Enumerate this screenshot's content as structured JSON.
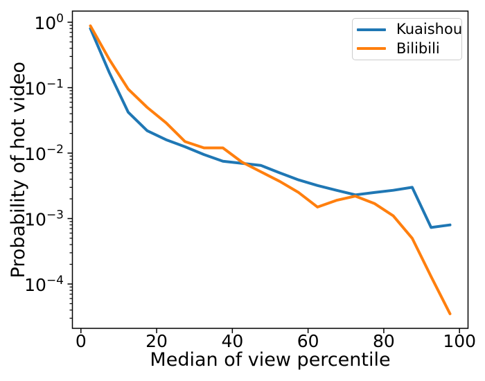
{
  "chart_data": {
    "type": "line",
    "title": "",
    "xlabel": "Median of view percentile",
    "ylabel": "Probability of hot video",
    "x": [
      2.5,
      7.5,
      12.5,
      17.5,
      22.5,
      27.5,
      32.5,
      37.5,
      42.5,
      47.5,
      52.5,
      57.5,
      62.5,
      67.5,
      72.5,
      77.5,
      82.5,
      87.5,
      92.5,
      97.5
    ],
    "series": [
      {
        "name": "Kuaishou",
        "color": "#1f77b4",
        "values": [
          0.8,
          0.17,
          0.042,
          0.022,
          0.016,
          0.0125,
          0.0095,
          0.0075,
          0.007,
          0.0065,
          0.005,
          0.0039,
          0.0032,
          0.0027,
          0.0023,
          0.0025,
          0.0027,
          0.003,
          0.00073,
          0.0008
        ]
      },
      {
        "name": "Bilibili",
        "color": "#ff7f0e",
        "values": [
          0.88,
          0.27,
          0.095,
          0.05,
          0.029,
          0.015,
          0.012,
          0.012,
          0.0073,
          0.0052,
          0.0037,
          0.0025,
          0.0015,
          0.0019,
          0.0022,
          0.0017,
          0.0011,
          0.0005,
          0.00013,
          3.5e-05
        ]
      }
    ],
    "x_scale": "linear",
    "y_scale": "log",
    "xlim": [
      -2.25,
      102.25
    ],
    "ylim": [
      2.1e-05,
      1.48
    ],
    "xticks": [
      0,
      20,
      40,
      60,
      80,
      100
    ],
    "ytick_exponents": [
      0,
      -1,
      -2,
      -3,
      -4
    ],
    "grid": false,
    "legend_position": "upper right",
    "line_width": 4,
    "axis_color": "#000000"
  }
}
